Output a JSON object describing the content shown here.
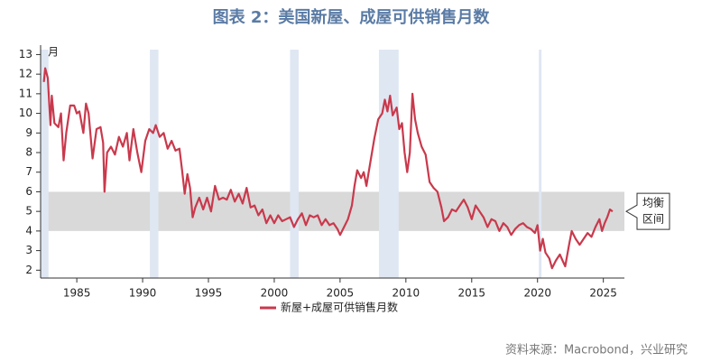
{
  "chart_data": {
    "type": "line",
    "title": "图表 2：美国新屋、成屋可供销售月数",
    "y_unit_label": "月",
    "source": "资料来源：Macrobond，兴业研究",
    "xlim": [
      1982.25,
      2026.6
    ],
    "ylim": [
      1.6,
      13.25
    ],
    "xticks": [
      1985,
      1990,
      1995,
      2000,
      2005,
      2010,
      2015,
      2020,
      2025
    ],
    "yticks": [
      2,
      3,
      4,
      5,
      6,
      7,
      8,
      9,
      10,
      11,
      12,
      13
    ],
    "recessions": [
      [
        1982.25,
        1982.85
      ],
      [
        1990.55,
        1991.2
      ],
      [
        2001.2,
        2001.85
      ],
      [
        2007.95,
        2009.45
      ],
      [
        2020.1,
        2020.3
      ]
    ],
    "recession_color": "#dfe7f3",
    "balance_band": {
      "range": [
        4,
        6
      ],
      "color": "#d9d9d9",
      "label_lines": [
        "均衡",
        "区间"
      ]
    },
    "legend": "bottom",
    "series": [
      {
        "name": "新屋+成屋可供销售月数",
        "color": "#c9394c",
        "x": [
          1982.5,
          1982.6,
          1982.8,
          1983.0,
          1983.1,
          1983.3,
          1983.6,
          1983.8,
          1984.0,
          1984.2,
          1984.5,
          1984.8,
          1985.0,
          1985.2,
          1985.5,
          1985.7,
          1985.9,
          1986.2,
          1986.5,
          1986.8,
          1987.0,
          1987.1,
          1987.3,
          1987.6,
          1987.9,
          1988.2,
          1988.5,
          1988.8,
          1989.0,
          1989.3,
          1989.6,
          1989.9,
          1990.2,
          1990.5,
          1990.8,
          1991.0,
          1991.3,
          1991.6,
          1991.9,
          1992.2,
          1992.5,
          1992.8,
          1993.0,
          1993.2,
          1993.4,
          1993.6,
          1993.8,
          1994.0,
          1994.3,
          1994.6,
          1994.9,
          1995.2,
          1995.5,
          1995.8,
          1996.1,
          1996.4,
          1996.7,
          1997.0,
          1997.3,
          1997.6,
          1997.9,
          1998.2,
          1998.5,
          1998.8,
          1999.1,
          1999.4,
          1999.7,
          2000.0,
          2000.3,
          2000.6,
          2000.9,
          2001.2,
          2001.5,
          2001.8,
          2002.1,
          2002.4,
          2002.7,
          2003.0,
          2003.3,
          2003.6,
          2003.9,
          2004.2,
          2004.5,
          2004.8,
          2005.0,
          2005.3,
          2005.6,
          2005.9,
          2006.1,
          2006.3,
          2006.6,
          2006.8,
          2007.0,
          2007.3,
          2007.6,
          2007.9,
          2008.2,
          2008.4,
          2008.6,
          2008.8,
          2009.0,
          2009.3,
          2009.5,
          2009.7,
          2009.9,
          2010.1,
          2010.3,
          2010.5,
          2010.7,
          2010.9,
          2011.2,
          2011.5,
          2011.8,
          2012.1,
          2012.4,
          2012.7,
          2012.9,
          2013.2,
          2013.5,
          2013.8,
          2014.1,
          2014.4,
          2014.7,
          2015.0,
          2015.3,
          2015.6,
          2015.9,
          2016.2,
          2016.5,
          2016.8,
          2017.1,
          2017.4,
          2017.7,
          2018.0,
          2018.3,
          2018.6,
          2018.9,
          2019.2,
          2019.5,
          2019.8,
          2020.0,
          2020.2,
          2020.4,
          2020.6,
          2020.9,
          2021.1,
          2021.4,
          2021.7,
          2021.9,
          2022.1,
          2022.4,
          2022.6,
          2022.9,
          2023.2,
          2023.5,
          2023.8,
          2024.1,
          2024.4,
          2024.7,
          2024.9,
          2025.1,
          2025.3,
          2025.5,
          2025.7
        ],
        "values": [
          11.6,
          12.3,
          11.8,
          9.4,
          10.9,
          9.5,
          9.3,
          10.0,
          7.6,
          9.0,
          10.4,
          10.4,
          10.0,
          10.1,
          9.0,
          10.5,
          10.0,
          7.7,
          9.2,
          9.3,
          8.5,
          6.0,
          8.0,
          8.3,
          7.9,
          8.8,
          8.3,
          9.0,
          7.6,
          9.2,
          8.0,
          7.0,
          8.6,
          9.2,
          9.0,
          9.4,
          8.8,
          9.0,
          8.2,
          8.6,
          8.1,
          8.2,
          7.1,
          5.9,
          6.9,
          6.2,
          4.7,
          5.2,
          5.7,
          5.1,
          5.7,
          5.0,
          6.3,
          5.6,
          5.7,
          5.6,
          6.1,
          5.5,
          5.9,
          5.4,
          6.2,
          5.2,
          5.3,
          4.8,
          5.1,
          4.4,
          4.8,
          4.4,
          4.8,
          4.5,
          4.6,
          4.7,
          4.2,
          4.6,
          4.9,
          4.3,
          4.8,
          4.7,
          4.8,
          4.3,
          4.6,
          4.3,
          4.4,
          4.1,
          3.8,
          4.2,
          4.6,
          5.3,
          6.3,
          7.1,
          6.7,
          7.0,
          6.3,
          7.5,
          8.7,
          9.7,
          10.0,
          10.7,
          10.1,
          10.9,
          9.9,
          10.3,
          9.2,
          9.5,
          8.0,
          7.0,
          8.0,
          11.0,
          9.7,
          9.0,
          8.3,
          7.9,
          6.5,
          6.2,
          6.0,
          5.2,
          4.5,
          4.7,
          5.1,
          5.0,
          5.3,
          5.6,
          5.2,
          4.6,
          5.3,
          5.0,
          4.7,
          4.2,
          4.6,
          4.5,
          4.0,
          4.4,
          4.2,
          3.8,
          4.1,
          4.3,
          4.4,
          4.2,
          4.1,
          3.9,
          4.3,
          3.0,
          3.6,
          2.9,
          2.6,
          2.1,
          2.5,
          2.8,
          2.5,
          2.2,
          3.3,
          4.0,
          3.6,
          3.3,
          3.6,
          3.9,
          3.7,
          4.2,
          4.6,
          4.0,
          4.4,
          4.7,
          5.1,
          5.0
        ]
      }
    ]
  }
}
